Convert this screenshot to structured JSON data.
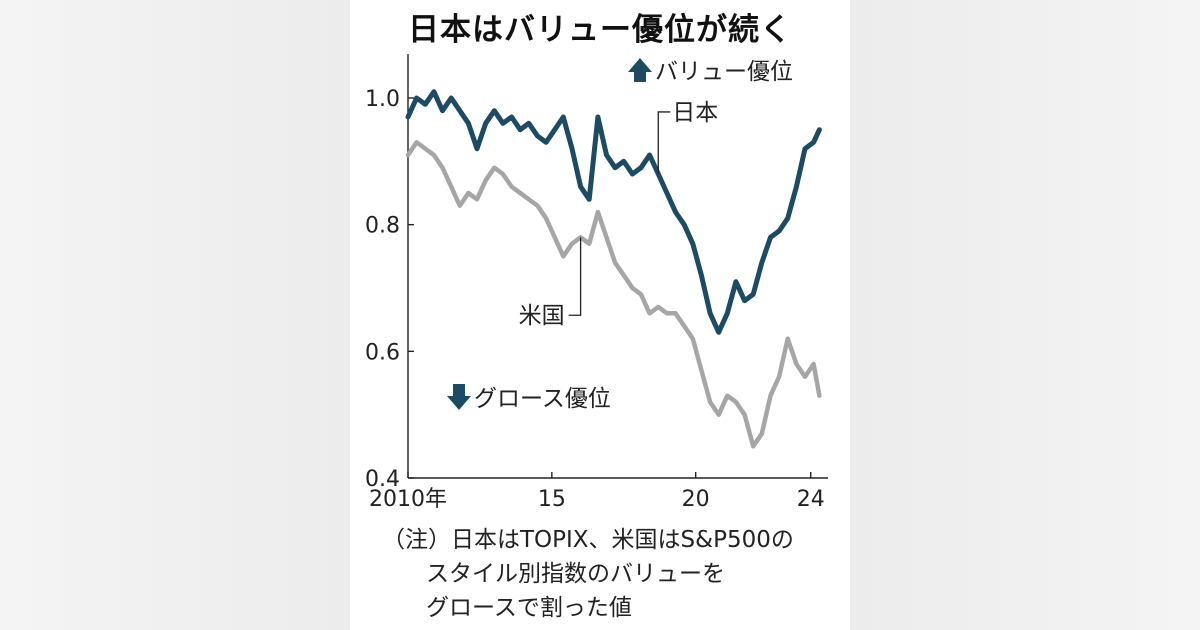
{
  "chart_data": {
    "type": "line",
    "title": "日本はバリュー優位が続く",
    "xlabel": "",
    "ylabel": "",
    "xlim": [
      2010,
      2024.6
    ],
    "ylim": [
      0.4,
      1.06
    ],
    "y_ticks": [
      {
        "value": 1.0,
        "label": "1.0"
      },
      {
        "value": 0.8,
        "label": "0.8"
      },
      {
        "value": 0.6,
        "label": "0.6"
      },
      {
        "value": 0.4,
        "label": "0.4"
      }
    ],
    "x_ticks": [
      {
        "value": 2010,
        "label": "2010年"
      },
      {
        "value": 2015,
        "label": "15"
      },
      {
        "value": 2020,
        "label": "20"
      },
      {
        "value": 2024,
        "label": "24"
      }
    ],
    "annotations": {
      "value_up": "バリュー優位",
      "growth_down": "グロース優位"
    },
    "series": [
      {
        "name": "日本",
        "color": "#1c4b63",
        "x": [
          2010.0,
          2010.3,
          2010.6,
          2010.9,
          2011.2,
          2011.5,
          2011.8,
          2012.1,
          2012.4,
          2012.7,
          2013.0,
          2013.3,
          2013.6,
          2013.9,
          2014.2,
          2014.5,
          2014.8,
          2015.1,
          2015.4,
          2015.7,
          2016.0,
          2016.3,
          2016.6,
          2016.9,
          2017.2,
          2017.5,
          2017.8,
          2018.1,
          2018.4,
          2018.7,
          2019.0,
          2019.3,
          2019.6,
          2019.9,
          2020.2,
          2020.5,
          2020.8,
          2021.1,
          2021.4,
          2021.7,
          2022.0,
          2022.3,
          2022.6,
          2022.9,
          2023.2,
          2023.5,
          2023.8,
          2024.1,
          2024.3
        ],
        "values": [
          0.97,
          1.0,
          0.99,
          1.01,
          0.98,
          1.0,
          0.98,
          0.96,
          0.92,
          0.96,
          0.98,
          0.96,
          0.97,
          0.95,
          0.96,
          0.94,
          0.93,
          0.95,
          0.97,
          0.92,
          0.86,
          0.84,
          0.97,
          0.91,
          0.89,
          0.9,
          0.88,
          0.89,
          0.91,
          0.88,
          0.85,
          0.82,
          0.8,
          0.77,
          0.72,
          0.66,
          0.63,
          0.66,
          0.71,
          0.68,
          0.69,
          0.74,
          0.78,
          0.79,
          0.81,
          0.86,
          0.92,
          0.93,
          0.95
        ]
      },
      {
        "name": "米国",
        "color": "#a6a6a6",
        "x": [
          2010.0,
          2010.3,
          2010.6,
          2010.9,
          2011.2,
          2011.5,
          2011.8,
          2012.1,
          2012.4,
          2012.7,
          2013.0,
          2013.3,
          2013.6,
          2013.9,
          2014.2,
          2014.5,
          2014.8,
          2015.1,
          2015.4,
          2015.7,
          2016.0,
          2016.3,
          2016.6,
          2016.9,
          2017.2,
          2017.5,
          2017.8,
          2018.1,
          2018.4,
          2018.7,
          2019.0,
          2019.3,
          2019.6,
          2019.9,
          2020.2,
          2020.5,
          2020.8,
          2021.1,
          2021.4,
          2021.7,
          2022.0,
          2022.3,
          2022.6,
          2022.9,
          2023.2,
          2023.5,
          2023.8,
          2024.1,
          2024.3
        ],
        "values": [
          0.91,
          0.93,
          0.92,
          0.91,
          0.89,
          0.86,
          0.83,
          0.85,
          0.84,
          0.87,
          0.89,
          0.88,
          0.86,
          0.85,
          0.84,
          0.83,
          0.81,
          0.78,
          0.75,
          0.77,
          0.78,
          0.77,
          0.82,
          0.78,
          0.74,
          0.72,
          0.7,
          0.69,
          0.66,
          0.67,
          0.66,
          0.66,
          0.64,
          0.62,
          0.57,
          0.52,
          0.5,
          0.53,
          0.52,
          0.5,
          0.45,
          0.47,
          0.53,
          0.56,
          0.62,
          0.58,
          0.56,
          0.58,
          0.53
        ]
      }
    ]
  },
  "note": {
    "line1": "（注）日本はTOPIX、米国はS&P500の",
    "line2": "スタイル別指数のバリューを",
    "line3": "グロースで割った値"
  }
}
